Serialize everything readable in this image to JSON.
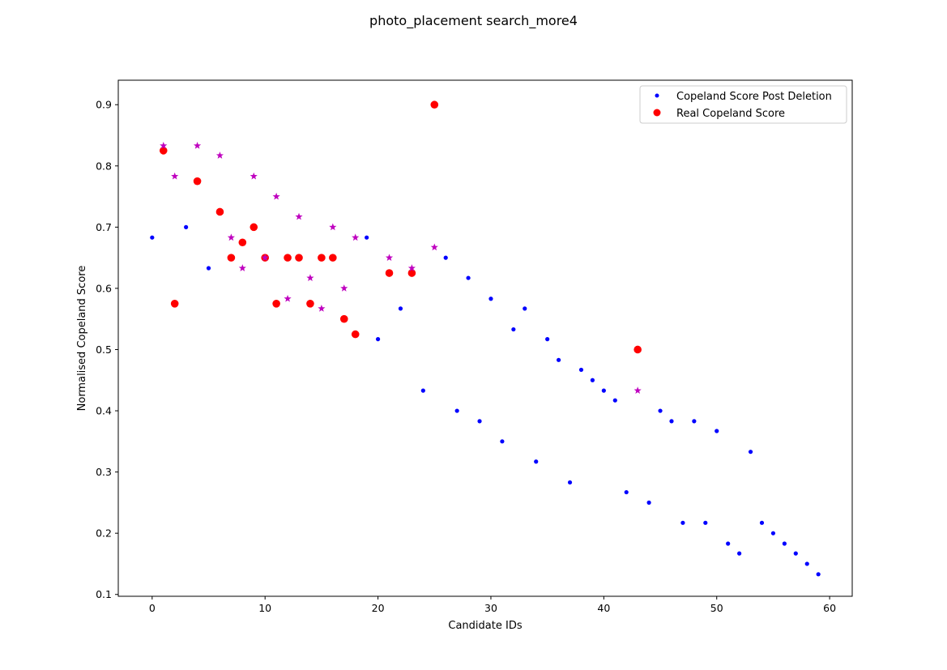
{
  "chart_data": {
    "type": "scatter",
    "title": "photo_placement search_more4",
    "xlabel": "Candidate IDs",
    "ylabel": "Normalised Copeland Score",
    "xlim": [
      -3,
      62
    ],
    "ylim": [
      0.097,
      0.94
    ],
    "xticks": [
      "0",
      "10",
      "20",
      "30",
      "40",
      "50",
      "60"
    ],
    "yticks": [
      "0.1",
      "0.2",
      "0.3",
      "0.4",
      "0.5",
      "0.6",
      "0.7",
      "0.8",
      "0.9"
    ],
    "grid": false,
    "legend_position": "top-right",
    "series": [
      {
        "name": "Copeland Score Post Deletion",
        "marker": "dot",
        "color": "#0000ff",
        "points": [
          [
            0,
            0.683
          ],
          [
            3,
            0.7
          ],
          [
            5,
            0.633
          ],
          [
            19,
            0.683
          ],
          [
            20,
            0.517
          ],
          [
            22,
            0.567
          ],
          [
            24,
            0.433
          ],
          [
            26,
            0.65
          ],
          [
            27,
            0.4
          ],
          [
            28,
            0.617
          ],
          [
            29,
            0.383
          ],
          [
            30,
            0.583
          ],
          [
            31,
            0.35
          ],
          [
            32,
            0.533
          ],
          [
            33,
            0.567
          ],
          [
            34,
            0.317
          ],
          [
            35,
            0.517
          ],
          [
            36,
            0.483
          ],
          [
            37,
            0.283
          ],
          [
            38,
            0.467
          ],
          [
            39,
            0.45
          ],
          [
            40,
            0.433
          ],
          [
            41,
            0.417
          ],
          [
            42,
            0.267
          ],
          [
            44,
            0.25
          ],
          [
            45,
            0.4
          ],
          [
            46,
            0.383
          ],
          [
            47,
            0.217
          ],
          [
            48,
            0.383
          ],
          [
            49,
            0.217
          ],
          [
            50,
            0.367
          ],
          [
            51,
            0.183
          ],
          [
            52,
            0.167
          ],
          [
            53,
            0.333
          ],
          [
            54,
            0.217
          ],
          [
            55,
            0.2
          ],
          [
            56,
            0.183
          ],
          [
            57,
            0.167
          ],
          [
            58,
            0.15
          ],
          [
            59,
            0.133
          ]
        ]
      },
      {
        "name": "Real Copeland Score",
        "marker": "circle",
        "color": "#ff0000",
        "points": [
          [
            1,
            0.825
          ],
          [
            2,
            0.575
          ],
          [
            4,
            0.775
          ],
          [
            6,
            0.725
          ],
          [
            7,
            0.65
          ],
          [
            8,
            0.675
          ],
          [
            9,
            0.7
          ],
          [
            10,
            0.65
          ],
          [
            11,
            0.575
          ],
          [
            12,
            0.65
          ],
          [
            13,
            0.65
          ],
          [
            14,
            0.575
          ],
          [
            15,
            0.65
          ],
          [
            16,
            0.65
          ],
          [
            17,
            0.55
          ],
          [
            18,
            0.525
          ],
          [
            21,
            0.625
          ],
          [
            23,
            0.625
          ],
          [
            25,
            0.9
          ],
          [
            43,
            0.5
          ]
        ]
      },
      {
        "marker": "star",
        "color": "#bf00bf",
        "points": [
          [
            1,
            0.833
          ],
          [
            2,
            0.783
          ],
          [
            4,
            0.833
          ],
          [
            6,
            0.817
          ],
          [
            7,
            0.683
          ],
          [
            8,
            0.633
          ],
          [
            9,
            0.783
          ],
          [
            10,
            0.65
          ],
          [
            11,
            0.75
          ],
          [
            12,
            0.583
          ],
          [
            13,
            0.717
          ],
          [
            14,
            0.617
          ],
          [
            15,
            0.567
          ],
          [
            16,
            0.7
          ],
          [
            17,
            0.6
          ],
          [
            18,
            0.683
          ],
          [
            21,
            0.65
          ],
          [
            23,
            0.633
          ],
          [
            25,
            0.667
          ],
          [
            43,
            0.433
          ]
        ]
      }
    ]
  }
}
